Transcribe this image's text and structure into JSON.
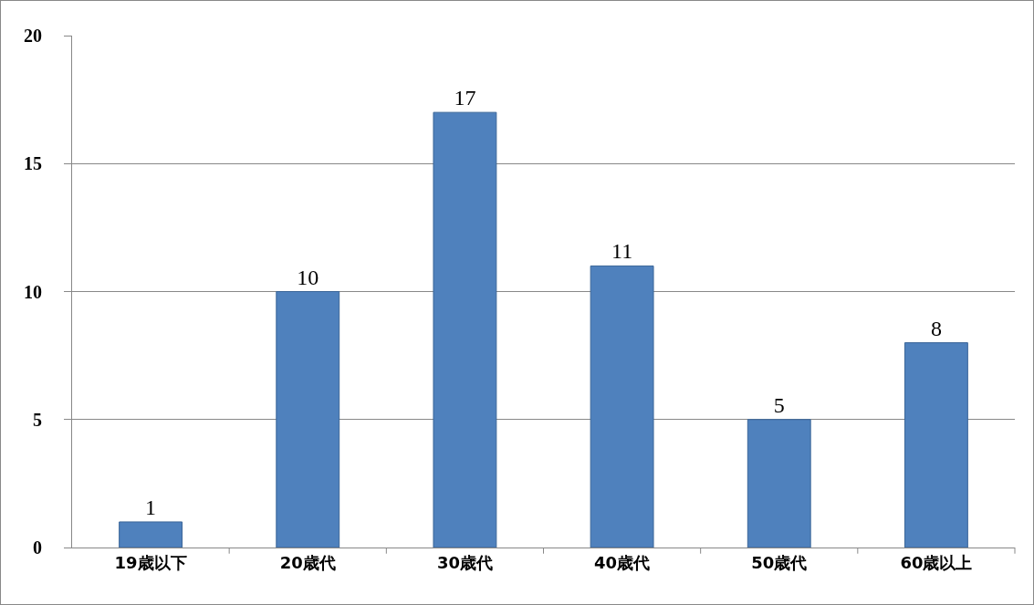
{
  "chart_data": {
    "type": "bar",
    "categories": [
      "19歳以下",
      "20歳代",
      "30歳代",
      "40歳代",
      "50歳代",
      "60歳以上"
    ],
    "values": [
      1,
      10,
      17,
      11,
      5,
      8
    ],
    "color": "#4f81bd",
    "ylim": [
      0,
      20
    ],
    "yticks": [
      0,
      5,
      10,
      15,
      20
    ],
    "grid": "y",
    "data_labels": true
  }
}
